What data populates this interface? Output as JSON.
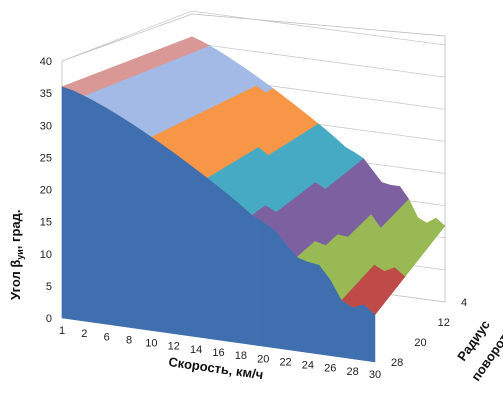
{
  "chart_data": {
    "type": "surface-3d",
    "xlabel": "Скорость, км/ч",
    "ylabel_main": "Угол β",
    "ylabel_sub": "уи",
    "ylabel_rest": ", град.",
    "zlabel_line1": "Радиус",
    "zlabel_line2": "поворота, м",
    "x_ticks": [
      "1",
      "2",
      "6",
      "8",
      "10",
      "12",
      "14",
      "16",
      "18",
      "20",
      "22",
      "24",
      "26",
      "28",
      "30"
    ],
    "y_ticks": [
      "0",
      "5",
      "10",
      "15",
      "20",
      "25",
      "30",
      "35",
      "40"
    ],
    "z_ticks": [
      "4",
      "12",
      "20",
      "28"
    ],
    "ylim": [
      0,
      40
    ],
    "grid": true,
    "color_bands": [
      {
        "from": 0,
        "to": 5,
        "color": "#4a7ebb"
      },
      {
        "from": 5,
        "to": 10,
        "color": "#be4b48"
      },
      {
        "from": 10,
        "to": 15,
        "color": "#98b954"
      },
      {
        "from": 15,
        "to": 20,
        "color": "#7d60a0"
      },
      {
        "from": 20,
        "to": 25,
        "color": "#46aac4"
      },
      {
        "from": 25,
        "to": 30,
        "color": "#f79646"
      },
      {
        "from": 30,
        "to": 35,
        "color": "#a3b9e6"
      },
      {
        "from": 35,
        "to": 40,
        "color": "#d99795"
      }
    ]
  }
}
